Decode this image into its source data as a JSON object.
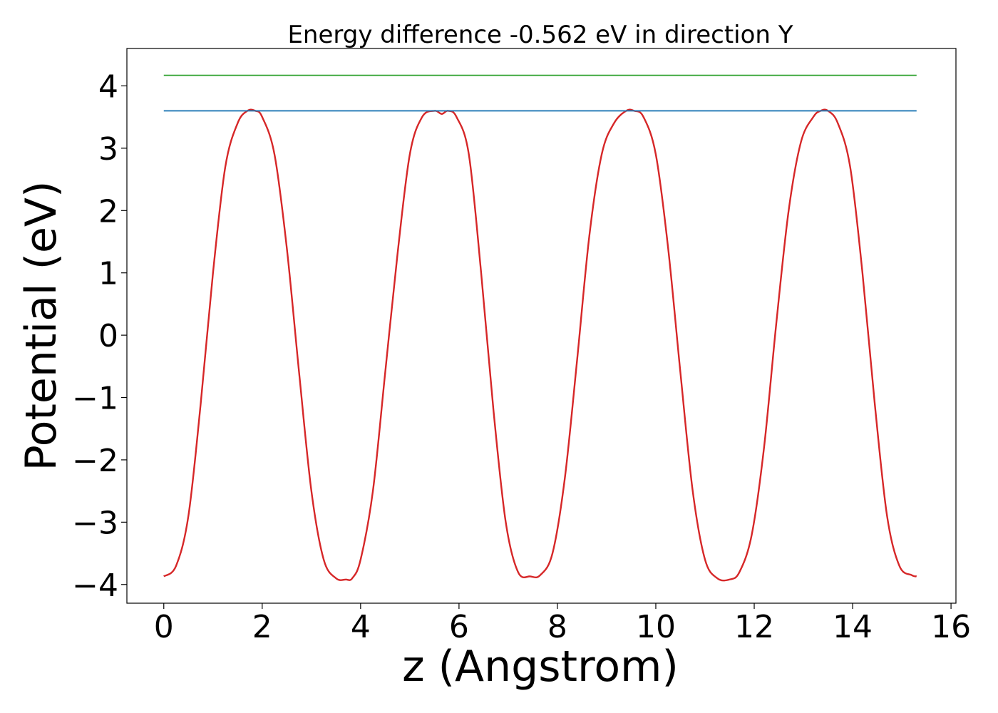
{
  "chart_data": {
    "type": "line",
    "title": "Energy difference -0.562 eV in direction Y",
    "xlabel": "z (Angstrom)",
    "ylabel": "Potential (eV)",
    "xlim": [
      -0.75,
      16.1
    ],
    "ylim": [
      -4.3,
      4.6
    ],
    "x_ticks": [
      0,
      2,
      4,
      6,
      8,
      10,
      12,
      14,
      16
    ],
    "x_tick_labels": [
      "0",
      "2",
      "4",
      "6",
      "8",
      "10",
      "12",
      "14",
      "16"
    ],
    "y_ticks": [
      -4,
      -3,
      -2,
      -1,
      0,
      1,
      2,
      3,
      4
    ],
    "y_tick_labels": [
      "−4",
      "−3",
      "−2",
      "−1",
      "0",
      "1",
      "2",
      "3",
      "4"
    ],
    "grid": false,
    "legend": false,
    "series": [
      {
        "color": "#d62728",
        "x": [
          0.0,
          0.25,
          0.5,
          0.75,
          1.0,
          1.25,
          1.5,
          1.7,
          1.86,
          2.0,
          2.25,
          2.5,
          2.75,
          3.0,
          3.25,
          3.5,
          3.7,
          3.83,
          4.0,
          4.25,
          4.5,
          4.75,
          5.0,
          5.25,
          5.5,
          5.65,
          5.78,
          5.95,
          6.2,
          6.45,
          6.7,
          6.95,
          7.2,
          7.45,
          7.65,
          7.9,
          8.15,
          8.4,
          8.65,
          8.9,
          9.15,
          9.4,
          9.56,
          9.75,
          10.0,
          10.25,
          10.5,
          10.75,
          11.0,
          11.25,
          11.5,
          11.7,
          11.95,
          12.2,
          12.45,
          12.7,
          12.95,
          13.2,
          13.35,
          13.5,
          13.7,
          13.95,
          14.2,
          14.45,
          14.7,
          14.95,
          15.2,
          15.3
        ],
        "y": [
          -3.87,
          -3.7,
          -2.9,
          -1.1,
          1.0,
          2.7,
          3.4,
          3.6,
          3.6,
          3.5,
          2.9,
          1.4,
          -0.6,
          -2.5,
          -3.6,
          -3.9,
          -3.92,
          -3.9,
          -3.6,
          -2.5,
          -0.6,
          1.3,
          2.9,
          3.5,
          3.6,
          3.55,
          3.6,
          3.5,
          2.9,
          1.0,
          -1.2,
          -3.0,
          -3.8,
          -3.87,
          -3.85,
          -3.5,
          -2.3,
          -0.4,
          1.6,
          2.9,
          3.4,
          3.6,
          3.6,
          3.5,
          2.9,
          1.4,
          -0.6,
          -2.5,
          -3.6,
          -3.9,
          -3.92,
          -3.8,
          -3.2,
          -1.8,
          0.2,
          2.0,
          3.1,
          3.5,
          3.6,
          3.6,
          3.4,
          2.7,
          1.0,
          -1.1,
          -2.9,
          -3.7,
          -3.85,
          -3.87
        ]
      },
      {
        "color": "#1f77b4",
        "x": [
          0.0,
          15.3
        ],
        "y": [
          3.6,
          3.6
        ]
      },
      {
        "color": "#2ca02c",
        "x": [
          0.0,
          15.3
        ],
        "y": [
          4.17,
          4.17
        ]
      }
    ]
  }
}
